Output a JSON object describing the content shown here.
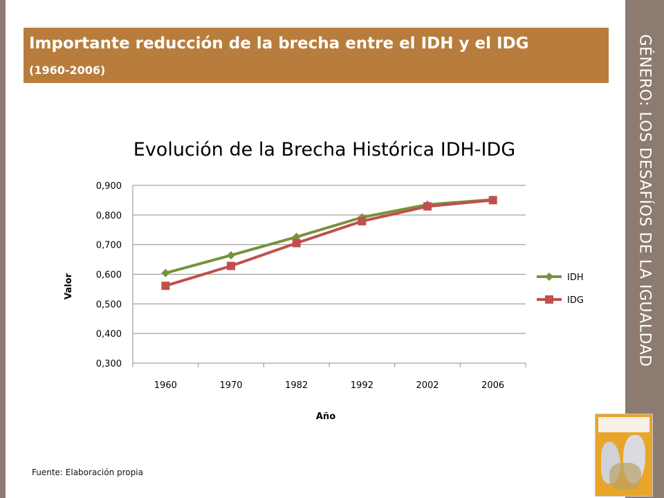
{
  "header": {
    "title": "Importante reducción de la brecha entre el IDH y el IDG",
    "subtitle": "(1960-2006)"
  },
  "side_title": "GÉNERO: LOS DESAFÍOS DE LA IGUALDAD",
  "source": "Fuente: Elaboración propia",
  "colors": {
    "header_bg": "#b87d3d",
    "side_band": "#8c7b70",
    "idh": "#77933c",
    "idg": "#c0504d"
  },
  "chart_data": {
    "type": "line",
    "title": "Evolución de la Brecha Histórica IDH-IDG",
    "xlabel": "Año",
    "ylabel": "Valor",
    "categories": [
      "1960",
      "1970",
      "1982",
      "1992",
      "2002",
      "2006"
    ],
    "y_ticks": [
      "0,300",
      "0,400",
      "0,500",
      "0,600",
      "0,700",
      "0,800",
      "0,900"
    ],
    "ylim": [
      0.3,
      0.9
    ],
    "grid": true,
    "legend": "right",
    "series": [
      {
        "name": "IDH",
        "values": [
          0.604,
          0.664,
          0.726,
          0.792,
          0.835,
          0.852
        ],
        "color": "#77933c",
        "marker": "diamond"
      },
      {
        "name": "IDG",
        "values": [
          0.561,
          0.628,
          0.705,
          0.779,
          0.829,
          0.85
        ],
        "color": "#c0504d",
        "marker": "square"
      }
    ]
  }
}
